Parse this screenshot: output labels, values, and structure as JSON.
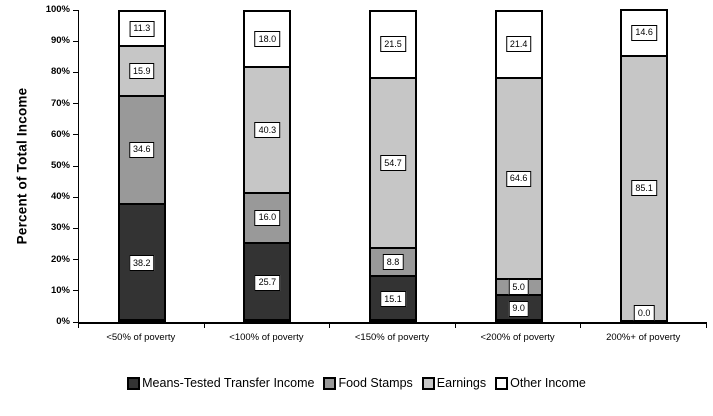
{
  "chart": {
    "y_axis_title": "Percent of Total Income",
    "y_tick_labels": [
      "0%",
      "10%",
      "20%",
      "30%",
      "40%",
      "50%",
      "60%",
      "70%",
      "80%",
      "90%",
      "100%"
    ],
    "colors": {
      "bar_border": "#000000",
      "label_box_background": "#ffffff",
      "label_box_border": "#000000",
      "axis": "#000000"
    }
  },
  "chart_data": {
    "type": "bar",
    "stacked": true,
    "title": "",
    "xlabel": "",
    "ylabel": "Percent of Total Income",
    "ylim": [
      0,
      100
    ],
    "y_tick_step": 10,
    "grid": false,
    "legend_position": "bottom",
    "categories": [
      "<50% of poverty",
      "<100%  of poverty",
      "<150% of poverty",
      "<200% of poverty",
      "200%+ of poverty"
    ],
    "series": [
      {
        "name": "Means-Tested Transfer Income",
        "color": "#333333",
        "values": [
          38.2,
          25.7,
          15.1,
          9.0,
          0.0
        ],
        "labels": [
          "38.2",
          "25.7",
          "15.1",
          "9.0",
          "0.0"
        ]
      },
      {
        "name": "Food Stamps",
        "color": "#999999",
        "values": [
          34.6,
          16.0,
          8.8,
          5.0,
          0.0
        ],
        "labels": [
          "34.6",
          "16.0",
          "8.8",
          "5.0",
          ""
        ]
      },
      {
        "name": "Earnings",
        "color": "#C6C6C6",
        "values": [
          15.9,
          40.3,
          54.7,
          64.6,
          85.1
        ],
        "labels": [
          "15.9",
          "40.3",
          "54.7",
          "64.6",
          "85.1"
        ]
      },
      {
        "name": "Other Income",
        "color": "#FFFFFF",
        "values": [
          11.3,
          18.0,
          21.5,
          21.4,
          14.6
        ],
        "labels": [
          "11.3",
          "18.0",
          "21.5",
          "21.4",
          "14.6"
        ]
      }
    ]
  }
}
